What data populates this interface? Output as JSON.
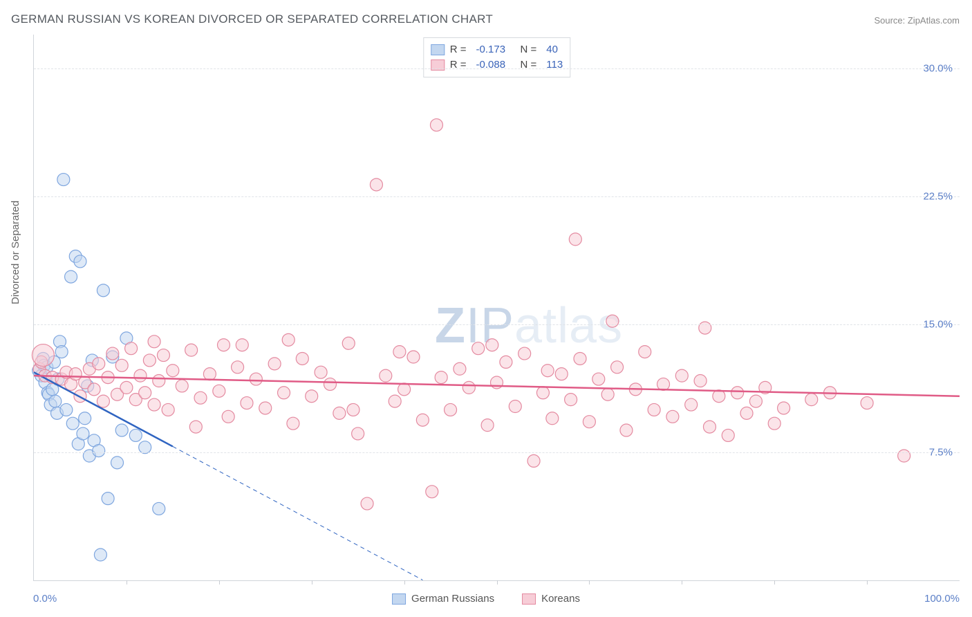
{
  "title": "GERMAN RUSSIAN VS KOREAN DIVORCED OR SEPARATED CORRELATION CHART",
  "source": "Source: ZipAtlas.com",
  "watermark": "ZIPatlas",
  "y_axis_label": "Divorced or Separated",
  "chart": {
    "type": "scatter",
    "xlim": [
      0,
      100
    ],
    "ylim": [
      0,
      32
    ],
    "x_ticks_minor_step": 10,
    "x_tick_labels": {
      "0": "0.0%",
      "100": "100.0%"
    },
    "y_ticks": [
      7.5,
      15.0,
      22.5,
      30.0
    ],
    "y_tick_labels": [
      "7.5%",
      "15.0%",
      "22.5%",
      "30.0%"
    ],
    "grid_color": "#e0e3e8",
    "axis_color": "#d0d4da",
    "background_color": "#ffffff",
    "tick_label_color": "#5b7fc7",
    "marker_radius": 9,
    "marker_stroke_width": 1.2,
    "series": [
      {
        "name": "German Russians",
        "fill": "#c3d7f0",
        "stroke": "#7ea6df",
        "fill_opacity": 0.55,
        "R": -0.173,
        "N": 40,
        "trend": {
          "solid_to_x": 15,
          "dashed_to_x": 42,
          "y_start": 12.2,
          "slope_per_x": -0.29,
          "color": "#2f64c1",
          "width": 2.5
        },
        "points": [
          [
            0.5,
            12.3
          ],
          [
            0.8,
            12.0
          ],
          [
            1.0,
            13.0
          ],
          [
            1.1,
            12.6
          ],
          [
            1.2,
            11.6
          ],
          [
            1.4,
            12.5
          ],
          [
            1.5,
            11.0
          ],
          [
            1.6,
            10.9
          ],
          [
            1.8,
            10.3
          ],
          [
            2.0,
            11.2
          ],
          [
            2.2,
            12.8
          ],
          [
            2.3,
            10.5
          ],
          [
            2.5,
            9.8
          ],
          [
            2.6,
            11.8
          ],
          [
            2.8,
            14.0
          ],
          [
            3.0,
            13.4
          ],
          [
            3.2,
            23.5
          ],
          [
            3.5,
            10.0
          ],
          [
            4.0,
            17.8
          ],
          [
            4.2,
            9.2
          ],
          [
            4.5,
            19.0
          ],
          [
            4.8,
            8.0
          ],
          [
            5.0,
            18.7
          ],
          [
            5.3,
            8.6
          ],
          [
            5.5,
            9.5
          ],
          [
            6.0,
            7.3
          ],
          [
            6.3,
            12.9
          ],
          [
            6.5,
            8.2
          ],
          [
            7.0,
            7.6
          ],
          [
            7.2,
            1.5
          ],
          [
            7.5,
            17.0
          ],
          [
            8.0,
            4.8
          ],
          [
            8.5,
            13.1
          ],
          [
            9.0,
            6.9
          ],
          [
            9.5,
            8.8
          ],
          [
            10.0,
            14.2
          ],
          [
            11.0,
            8.5
          ],
          [
            12.0,
            7.8
          ],
          [
            13.5,
            4.2
          ],
          [
            5.8,
            11.4
          ]
        ]
      },
      {
        "name": "Koreans",
        "fill": "#f7cdd7",
        "stroke": "#e48aa0",
        "fill_opacity": 0.55,
        "R": -0.088,
        "N": 113,
        "trend": {
          "solid_to_x": 100,
          "y_start": 12.0,
          "slope_per_x": -0.012,
          "color": "#e05b86",
          "width": 2.5
        },
        "points": [
          [
            0.6,
            12.4
          ],
          [
            0.8,
            12.8
          ],
          [
            1.0,
            13.2,
            16
          ],
          [
            1.2,
            12.0
          ],
          [
            2.0,
            11.9
          ],
          [
            3.0,
            11.8
          ],
          [
            3.5,
            12.2
          ],
          [
            4.0,
            11.5
          ],
          [
            4.5,
            12.1
          ],
          [
            5.0,
            10.8
          ],
          [
            5.5,
            11.6
          ],
          [
            6.0,
            12.4
          ],
          [
            6.5,
            11.2
          ],
          [
            7.0,
            12.7
          ],
          [
            7.5,
            10.5
          ],
          [
            8.0,
            11.9
          ],
          [
            8.5,
            13.3
          ],
          [
            9.0,
            10.9
          ],
          [
            9.5,
            12.6
          ],
          [
            10.0,
            11.3
          ],
          [
            10.5,
            13.6
          ],
          [
            11.0,
            10.6
          ],
          [
            11.5,
            12.0
          ],
          [
            12.0,
            11.0
          ],
          [
            12.5,
            12.9
          ],
          [
            13.0,
            10.3
          ],
          [
            13.5,
            11.7
          ],
          [
            14.0,
            13.2
          ],
          [
            14.5,
            10.0
          ],
          [
            15.0,
            12.3
          ],
          [
            16.0,
            11.4
          ],
          [
            17.0,
            13.5
          ],
          [
            18.0,
            10.7
          ],
          [
            19.0,
            12.1
          ],
          [
            20.0,
            11.1
          ],
          [
            20.5,
            13.8
          ],
          [
            21.0,
            9.6
          ],
          [
            22.0,
            12.5
          ],
          [
            23.0,
            10.4
          ],
          [
            24.0,
            11.8
          ],
          [
            25.0,
            10.1
          ],
          [
            26.0,
            12.7
          ],
          [
            27.0,
            11.0
          ],
          [
            28.0,
            9.2
          ],
          [
            29.0,
            13.0
          ],
          [
            30.0,
            10.8
          ],
          [
            31.0,
            12.2
          ],
          [
            32.0,
            11.5
          ],
          [
            33.0,
            9.8
          ],
          [
            34.0,
            13.9
          ],
          [
            35.0,
            8.6
          ],
          [
            36.0,
            4.5
          ],
          [
            37.0,
            23.2
          ],
          [
            38.0,
            12.0
          ],
          [
            39.0,
            10.5
          ],
          [
            40.0,
            11.2
          ],
          [
            41.0,
            13.1
          ],
          [
            42.0,
            9.4
          ],
          [
            43.0,
            5.2
          ],
          [
            43.5,
            26.7
          ],
          [
            44.0,
            11.9
          ],
          [
            45.0,
            10.0
          ],
          [
            46.0,
            12.4
          ],
          [
            47.0,
            11.3
          ],
          [
            48.0,
            13.6
          ],
          [
            49.0,
            9.1
          ],
          [
            50.0,
            11.6
          ],
          [
            51.0,
            12.8
          ],
          [
            52.0,
            10.2
          ],
          [
            53.0,
            13.3
          ],
          [
            54.0,
            7.0
          ],
          [
            55.0,
            11.0
          ],
          [
            56.0,
            9.5
          ],
          [
            57.0,
            12.1
          ],
          [
            58.0,
            10.6
          ],
          [
            58.5,
            20.0
          ],
          [
            59.0,
            13.0
          ],
          [
            60.0,
            9.3
          ],
          [
            61.0,
            11.8
          ],
          [
            62.0,
            10.9
          ],
          [
            62.5,
            15.2
          ],
          [
            63.0,
            12.5
          ],
          [
            64.0,
            8.8
          ],
          [
            65.0,
            11.2
          ],
          [
            66.0,
            13.4
          ],
          [
            67.0,
            10.0
          ],
          [
            68.0,
            11.5
          ],
          [
            69.0,
            9.6
          ],
          [
            70.0,
            12.0
          ],
          [
            71.0,
            10.3
          ],
          [
            72.0,
            11.7
          ],
          [
            72.5,
            14.8
          ],
          [
            73.0,
            9.0
          ],
          [
            74.0,
            10.8
          ],
          [
            75.0,
            8.5
          ],
          [
            76.0,
            11.0
          ],
          [
            77.0,
            9.8
          ],
          [
            78.0,
            10.5
          ],
          [
            79.0,
            11.3
          ],
          [
            80.0,
            9.2
          ],
          [
            81.0,
            10.1
          ],
          [
            84.0,
            10.6
          ],
          [
            86.0,
            11.0
          ],
          [
            90.0,
            10.4
          ],
          [
            94.0,
            7.3
          ],
          [
            13.0,
            14.0
          ],
          [
            17.5,
            9.0
          ],
          [
            22.5,
            13.8
          ],
          [
            27.5,
            14.1
          ],
          [
            34.5,
            10.0
          ],
          [
            39.5,
            13.4
          ],
          [
            49.5,
            13.8
          ],
          [
            55.5,
            12.3
          ]
        ]
      }
    ]
  },
  "legend_top": {
    "rows": [
      {
        "swatch_fill": "#c3d7f0",
        "swatch_stroke": "#7ea6df",
        "r_label": "R =",
        "r_val": "-0.173",
        "n_label": "N =",
        "n_val": "40"
      },
      {
        "swatch_fill": "#f7cdd7",
        "swatch_stroke": "#e48aa0",
        "r_label": "R =",
        "r_val": "-0.088",
        "n_label": "N =",
        "n_val": "113"
      }
    ]
  },
  "legend_bottom": {
    "items": [
      {
        "swatch_fill": "#c3d7f0",
        "swatch_stroke": "#7ea6df",
        "label": "German Russians"
      },
      {
        "swatch_fill": "#f7cdd7",
        "swatch_stroke": "#e48aa0",
        "label": "Koreans"
      }
    ]
  }
}
